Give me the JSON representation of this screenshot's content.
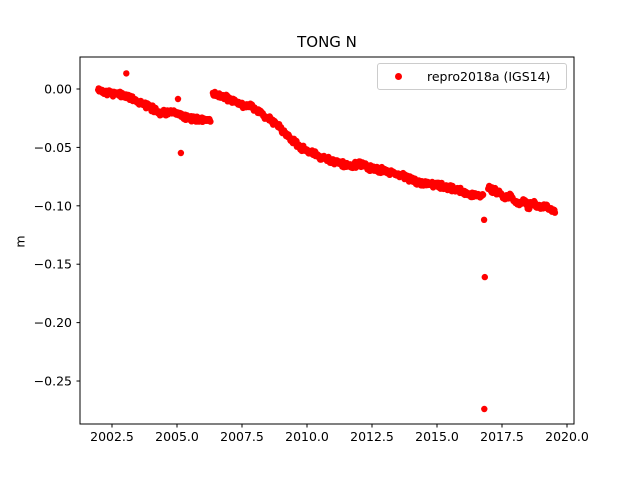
{
  "chart_data": {
    "type": "scatter",
    "title": "TONG N",
    "xlabel": "",
    "ylabel": "m",
    "grid": false,
    "background": "#ffffff",
    "axes_color": "#000000",
    "xlim": [
      2001.269,
      2020.269
    ],
    "ylim": [
      -0.2868,
      0.0274
    ],
    "xticks": {
      "values": [
        2002.5,
        2005.0,
        2007.5,
        2010.0,
        2012.5,
        2015.0,
        2017.5,
        2020.0
      ],
      "labels": [
        "2002.5",
        "2005.0",
        "2007.5",
        "2010.0",
        "2012.5",
        "2015.0",
        "2017.5",
        "2020.0"
      ]
    },
    "yticks": {
      "values": [
        0.0,
        -0.05,
        -0.1,
        -0.15,
        -0.2,
        -0.25
      ],
      "labels": [
        "0.00",
        "−0.05",
        "−0.10",
        "−0.15",
        "−0.20",
        "−0.25"
      ]
    },
    "legend": {
      "position": "upper right",
      "entries": [
        {
          "label": "repro2018a (IGS14)",
          "marker": "dot",
          "color": "#ff0000"
        }
      ]
    },
    "series": [
      {
        "name": "repro2018a (IGS14)",
        "color": "#ff0000",
        "marker_radius_px": 3.2,
        "representation": "dense daily scatter approximated by trend anchors [decimal_year, meters] plus noise",
        "sample_interval_years": 0.019,
        "noise_amplitude_m": 0.003,
        "segments": [
          {
            "anchors": [
              [
                2001.97,
                -0.001
              ],
              [
                2002.4,
                -0.003
              ],
              [
                2002.8,
                -0.005
              ],
              [
                2003.2,
                -0.007
              ],
              [
                2003.6,
                -0.012
              ],
              [
                2004.0,
                -0.016
              ],
              [
                2004.35,
                -0.02
              ],
              [
                2004.75,
                -0.02
              ],
              [
                2005.12,
                -0.022
              ],
              [
                2005.5,
                -0.025
              ],
              [
                2005.9,
                -0.026
              ],
              [
                2006.3,
                -0.0265
              ]
            ]
          },
          {
            "anchors": [
              [
                2006.38,
                -0.004
              ],
              [
                2006.65,
                -0.006
              ],
              [
                2007.04,
                -0.009
              ],
              [
                2007.42,
                -0.013
              ],
              [
                2007.81,
                -0.015
              ],
              [
                2008.19,
                -0.02
              ],
              [
                2008.58,
                -0.026
              ],
              [
                2008.96,
                -0.033
              ],
              [
                2009.35,
                -0.042
              ],
              [
                2009.73,
                -0.05
              ],
              [
                2010.12,
                -0.054
              ],
              [
                2010.5,
                -0.058
              ],
              [
                2010.88,
                -0.061
              ],
              [
                2011.27,
                -0.064
              ],
              [
                2011.65,
                -0.066
              ],
              [
                2012.04,
                -0.064
              ],
              [
                2012.42,
                -0.068
              ],
              [
                2012.81,
                -0.069
              ],
              [
                2013.19,
                -0.071
              ],
              [
                2013.58,
                -0.0735
              ],
              [
                2013.96,
                -0.077
              ],
              [
                2014.35,
                -0.08
              ],
              [
                2014.73,
                -0.0815
              ],
              [
                2015.12,
                -0.083
              ],
              [
                2015.5,
                -0.085
              ],
              [
                2015.88,
                -0.0865
              ],
              [
                2016.27,
                -0.091
              ],
              [
                2016.5,
                -0.0915
              ],
              [
                2016.78,
                -0.09
              ]
            ]
          },
          {
            "anchors": [
              [
                2016.97,
                -0.084
              ],
              [
                2017.15,
                -0.087
              ],
              [
                2017.42,
                -0.089
              ],
              [
                2017.62,
                -0.0925
              ],
              [
                2017.81,
                -0.0915
              ],
              [
                2018.0,
                -0.0965
              ],
              [
                2018.19,
                -0.0985
              ],
              [
                2018.35,
                -0.095
              ],
              [
                2018.5,
                -0.1005
              ],
              [
                2018.73,
                -0.0975
              ],
              [
                2018.96,
                -0.102
              ],
              [
                2019.12,
                -0.099
              ],
              [
                2019.31,
                -0.1015
              ],
              [
                2019.54,
                -0.105
              ]
            ]
          }
        ],
        "outliers": [
          [
            2003.05,
            0.0134
          ],
          [
            2005.04,
            -0.0086
          ],
          [
            2005.15,
            -0.0548
          ],
          [
            2016.81,
            -0.112
          ],
          [
            2016.84,
            -0.161
          ],
          [
            2016.82,
            -0.274
          ]
        ]
      }
    ]
  }
}
